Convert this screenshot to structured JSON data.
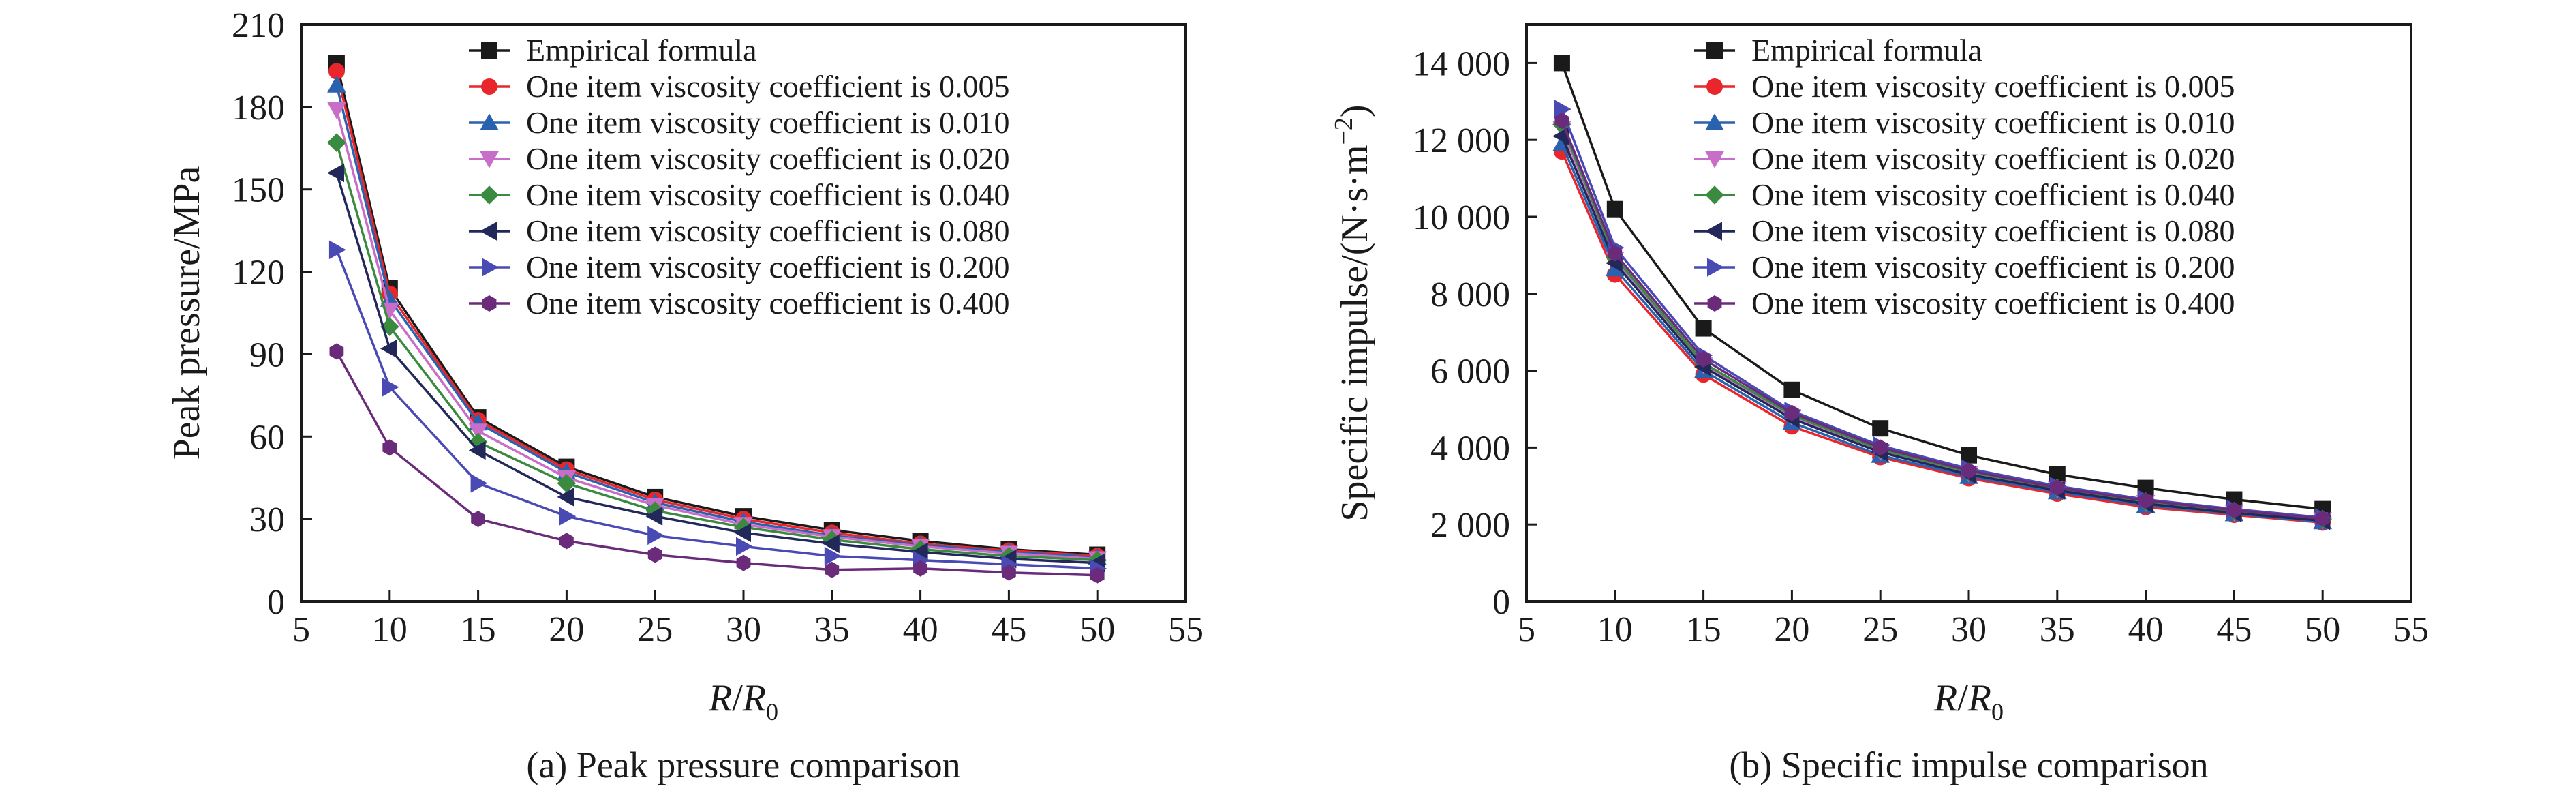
{
  "chart_data": [
    {
      "id": "a",
      "type": "line",
      "caption": "(a) Peak pressure comparison",
      "xlabel": "R/R0",
      "ylabel": "Peak pressure/MPa",
      "xlim": [
        5,
        55
      ],
      "ylim": [
        0,
        210
      ],
      "xticks": [
        5,
        10,
        15,
        20,
        25,
        30,
        35,
        40,
        45,
        50,
        55
      ],
      "yticks": [
        0,
        30,
        60,
        90,
        120,
        150,
        180,
        210
      ],
      "ytick_labels": [
        "0",
        "30",
        "60",
        "90",
        "120",
        "150",
        "180",
        "210"
      ],
      "grid": false,
      "legend_position": "top-right",
      "x": [
        7,
        10,
        15,
        20,
        25,
        30,
        35,
        40,
        45,
        50
      ],
      "series": [
        {
          "name": "Empirical formula",
          "color": "#1a1a1a",
          "marker": "square",
          "values": [
            196,
            114,
            67,
            49,
            38,
            31,
            26,
            22,
            19,
            17
          ]
        },
        {
          "name": "One item viscosity coefficient is 0.005",
          "color": "#e8262b",
          "marker": "circle",
          "values": [
            193,
            112,
            66,
            48,
            37,
            30,
            25,
            21,
            18.5,
            16.5
          ]
        },
        {
          "name": "One item viscosity coefficient is 0.010",
          "color": "#2b62b0",
          "marker": "triangle-up",
          "values": [
            188,
            110,
            65,
            47,
            36,
            29,
            24,
            20.5,
            18,
            16
          ]
        },
        {
          "name": "One item viscosity coefficient is 0.020",
          "color": "#c86ec8",
          "marker": "triangle-down",
          "values": [
            179,
            106,
            62,
            45,
            35,
            28,
            23.5,
            20,
            17.5,
            15.5
          ]
        },
        {
          "name": "One item viscosity coefficient is 0.040",
          "color": "#3a8a3f",
          "marker": "diamond",
          "values": [
            167,
            100,
            58,
            43,
            33,
            27,
            22.5,
            19,
            16.5,
            15
          ]
        },
        {
          "name": "One item viscosity coefficient is 0.080",
          "color": "#22285a",
          "marker": "triangle-left",
          "values": [
            156,
            92,
            55,
            38,
            31,
            25,
            21,
            18,
            15.5,
            14
          ]
        },
        {
          "name": "One item viscosity coefficient is 0.200",
          "color": "#4a4ab5",
          "marker": "triangle-right",
          "values": [
            128,
            78,
            43,
            31,
            24,
            20,
            16.5,
            15,
            13.5,
            12
          ]
        },
        {
          "name": "One item viscosity coefficient is 0.400",
          "color": "#6b2b7b",
          "marker": "hexagon",
          "values": [
            91,
            56,
            30,
            22,
            17,
            14,
            11.5,
            12,
            10.5,
            9.5
          ]
        }
      ]
    },
    {
      "id": "b",
      "type": "line",
      "caption": "(b) Specific impulse comparison",
      "xlabel": "R/R0",
      "ylabel": "Specific impulse/(N·s·m−2)",
      "xlim": [
        5,
        55
      ],
      "ylim": [
        0,
        15000
      ],
      "xticks": [
        5,
        10,
        15,
        20,
        25,
        30,
        35,
        40,
        45,
        50,
        55
      ],
      "yticks": [
        0,
        2000,
        4000,
        6000,
        8000,
        10000,
        12000,
        14000
      ],
      "ytick_labels": [
        "0",
        "2 000",
        "4 000",
        "6 000",
        "8 000",
        "10 000",
        "12 000",
        "14 000"
      ],
      "grid": false,
      "legend_position": "top-right",
      "x": [
        7,
        10,
        15,
        20,
        25,
        30,
        35,
        40,
        45,
        50
      ],
      "series": [
        {
          "name": "Empirical formula",
          "color": "#1a1a1a",
          "marker": "square",
          "values": [
            14000,
            10200,
            7100,
            5500,
            4500,
            3800,
            3300,
            2950,
            2650,
            2400
          ]
        },
        {
          "name": "One item viscosity coefficient is 0.005",
          "color": "#e8262b",
          "marker": "circle",
          "values": [
            11700,
            8500,
            5900,
            4550,
            3750,
            3200,
            2800,
            2450,
            2250,
            2050
          ]
        },
        {
          "name": "One item viscosity coefficient is 0.010",
          "color": "#2b62b0",
          "marker": "triangle-up",
          "values": [
            11900,
            8650,
            6000,
            4650,
            3800,
            3250,
            2850,
            2500,
            2280,
            2070
          ]
        },
        {
          "name": "One item viscosity coefficient is 0.020",
          "color": "#c86ec8",
          "marker": "triangle-down",
          "values": [
            12300,
            8900,
            6150,
            4800,
            3900,
            3330,
            2920,
            2570,
            2320,
            2120
          ]
        },
        {
          "name": "One item viscosity coefficient is 0.040",
          "color": "#3a8a3f",
          "marker": "diamond",
          "values": [
            12400,
            8950,
            6200,
            4850,
            3950,
            3370,
            2950,
            2600,
            2350,
            2140
          ]
        },
        {
          "name": "One item viscosity coefficient is 0.080",
          "color": "#22285a",
          "marker": "triangle-left",
          "values": [
            12100,
            8800,
            6100,
            4750,
            3880,
            3300,
            2890,
            2540,
            2300,
            2100
          ]
        },
        {
          "name": "One item viscosity coefficient is 0.200",
          "color": "#4a4ab5",
          "marker": "triangle-right",
          "values": [
            12800,
            9200,
            6400,
            4950,
            4050,
            3450,
            3000,
            2650,
            2400,
            2180
          ]
        },
        {
          "name": "One item viscosity coefficient is 0.400",
          "color": "#6b2b7b",
          "marker": "hexagon",
          "values": [
            12500,
            9050,
            6300,
            4900,
            4000,
            3400,
            2960,
            2620,
            2370,
            2150
          ]
        }
      ]
    }
  ]
}
